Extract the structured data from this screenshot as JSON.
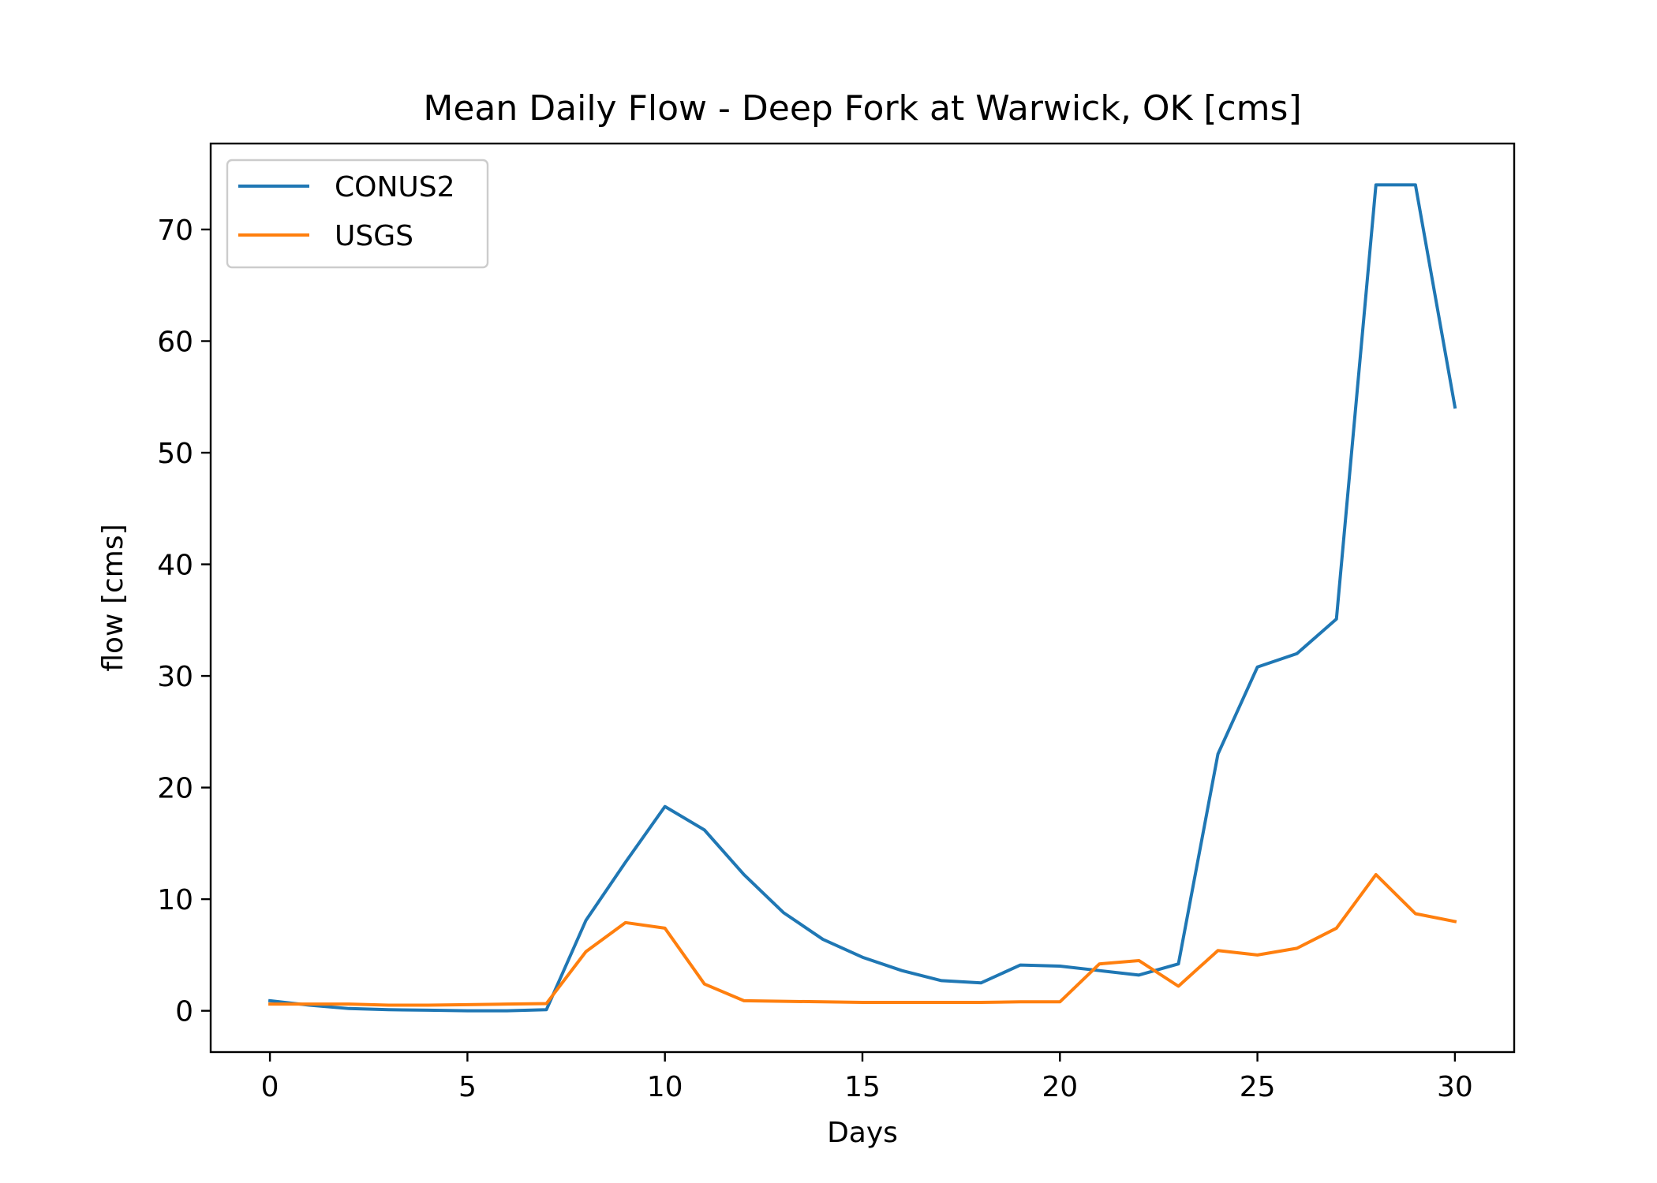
{
  "chart_data": {
    "type": "line",
    "title": "Mean Daily Flow - Deep Fork at Warwick, OK [cms]",
    "xlabel": "Days",
    "ylabel": "flow [cms]",
    "xlim": [
      -1.5,
      31.5
    ],
    "ylim": [
      -3.7,
      77.7
    ],
    "xticks": [
      0,
      5,
      10,
      15,
      20,
      25,
      30
    ],
    "yticks": [
      0,
      10,
      20,
      30,
      40,
      50,
      60,
      70
    ],
    "grid": false,
    "legend_position": "upper left",
    "x": [
      0,
      1,
      2,
      3,
      4,
      5,
      6,
      7,
      8,
      9,
      10,
      11,
      12,
      13,
      14,
      15,
      16,
      17,
      18,
      19,
      20,
      21,
      22,
      23,
      24,
      25,
      26,
      27,
      28,
      29,
      30
    ],
    "series": [
      {
        "name": "CONUS2",
        "color": "#1f77b4",
        "values": [
          0.9,
          0.5,
          0.2,
          0.1,
          0.05,
          0.0,
          0.0,
          0.1,
          8.1,
          13.3,
          18.3,
          16.2,
          12.2,
          8.8,
          6.4,
          4.8,
          3.6,
          2.7,
          2.5,
          4.1,
          4.0,
          3.6,
          3.2,
          4.2,
          23.0,
          30.8,
          32.0,
          35.1,
          74.0,
          74.0,
          54.1
        ]
      },
      {
        "name": "USGS",
        "color": "#ff7f0e",
        "values": [
          0.6,
          0.6,
          0.6,
          0.5,
          0.5,
          0.55,
          0.6,
          0.65,
          5.3,
          7.9,
          7.4,
          2.4,
          0.9,
          0.85,
          0.8,
          0.75,
          0.75,
          0.75,
          0.75,
          0.8,
          0.8,
          4.2,
          4.5,
          2.2,
          5.4,
          5.0,
          5.6,
          7.4,
          12.2,
          8.7,
          8.0
        ]
      }
    ]
  }
}
